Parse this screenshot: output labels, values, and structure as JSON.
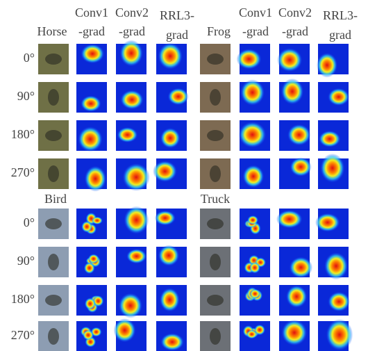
{
  "headers": [
    {
      "line1": "Conv1",
      "line2": "-grad"
    },
    {
      "line1": "Conv2",
      "line2": "-grad"
    },
    {
      "line1": "RRL3-",
      "line2": "grad"
    },
    {
      "line1": "Conv1",
      "line2": "-grad"
    },
    {
      "line1": "Conv2",
      "line2": "-grad"
    },
    {
      "line1": "RRL3-",
      "line2": "grad"
    }
  ],
  "blocks": [
    {
      "classes": [
        "Horse",
        "Frog"
      ],
      "rows": [
        "0°",
        "90°",
        "180°",
        "270°"
      ]
    },
    {
      "classes": [
        "Bird",
        "Truck"
      ],
      "rows": [
        "0°",
        "90°",
        "180°",
        "270°"
      ]
    }
  ]
}
